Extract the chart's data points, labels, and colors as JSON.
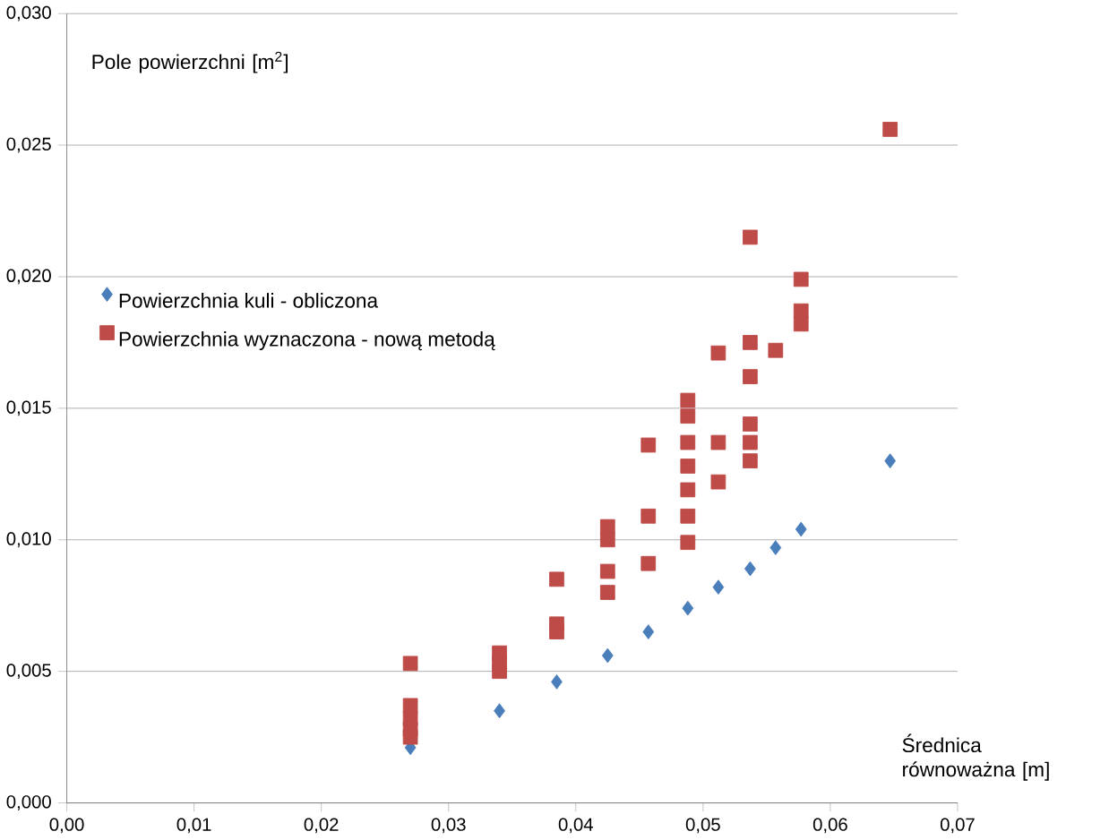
{
  "chart_data": {
    "type": "scatter",
    "xlabel": "Średnica równoważna [m]",
    "ylabel": "Pole powierzchni [m$^{2}$]",
    "xlim": [
      0,
      0.07
    ],
    "ylim": [
      0,
      0.03
    ],
    "xticks": [
      {
        "value": 0,
        "label": "0,00"
      },
      {
        "value": 0.01,
        "label": "0,01"
      },
      {
        "value": 0.02,
        "label": "0,02"
      },
      {
        "value": 0.03,
        "label": "0,03"
      },
      {
        "value": 0.04,
        "label": "0,04"
      },
      {
        "value": 0.05,
        "label": "0,05"
      },
      {
        "value": 0.06,
        "label": "0,06"
      },
      {
        "value": 0.07,
        "label": "0,07"
      }
    ],
    "yticks": [
      {
        "value": 0,
        "label": "0,000"
      },
      {
        "value": 0.005,
        "label": "0,005"
      },
      {
        "value": 0.01,
        "label": "0,010"
      },
      {
        "value": 0.015,
        "label": "0,015"
      },
      {
        "value": 0.02,
        "label": "0,020"
      },
      {
        "value": 0.025,
        "label": "0,025"
      },
      {
        "value": 0.03,
        "label": "0,030"
      }
    ],
    "grid": "y",
    "legend": "left",
    "series": [
      {
        "name": "Powierzchnia kuli - obliczona",
        "color": "#4a7ebb",
        "marker": "diamond",
        "x": [
          0.027,
          0.034,
          0.0385,
          0.0425,
          0.0457,
          0.0488,
          0.0512,
          0.0537,
          0.0557,
          0.0577,
          0.0647
        ],
        "values": [
          0.0021,
          0.0035,
          0.0046,
          0.0056,
          0.0065,
          0.0074,
          0.0082,
          0.0089,
          0.0097,
          0.0104,
          0.013
        ]
      },
      {
        "name": "Powierzchnia wyznaczona - nową metodą",
        "color": "#be4b48",
        "marker": "square",
        "x": [
          0.027,
          0.027,
          0.027,
          0.027,
          0.027,
          0.034,
          0.034,
          0.034,
          0.0385,
          0.0385,
          0.0385,
          0.0425,
          0.0425,
          0.0425,
          0.0425,
          0.0457,
          0.0457,
          0.0457,
          0.0488,
          0.0488,
          0.0488,
          0.0488,
          0.0488,
          0.0488,
          0.0488,
          0.0512,
          0.0512,
          0.0512,
          0.0537,
          0.0537,
          0.0537,
          0.0537,
          0.0537,
          0.0537,
          0.0557,
          0.0577,
          0.0577,
          0.0577,
          0.0647
        ],
        "values": [
          0.0053,
          0.0037,
          0.0032,
          0.0028,
          0.0025,
          0.0057,
          0.0053,
          0.005,
          0.0085,
          0.0068,
          0.0065,
          0.0105,
          0.01,
          0.0088,
          0.008,
          0.0136,
          0.0109,
          0.0091,
          0.0153,
          0.0147,
          0.0137,
          0.0128,
          0.0119,
          0.0109,
          0.0099,
          0.0171,
          0.0137,
          0.0122,
          0.0215,
          0.0175,
          0.0162,
          0.0144,
          0.0137,
          0.013,
          0.0172,
          0.0199,
          0.0187,
          0.0182,
          0.0256
        ]
      }
    ]
  }
}
